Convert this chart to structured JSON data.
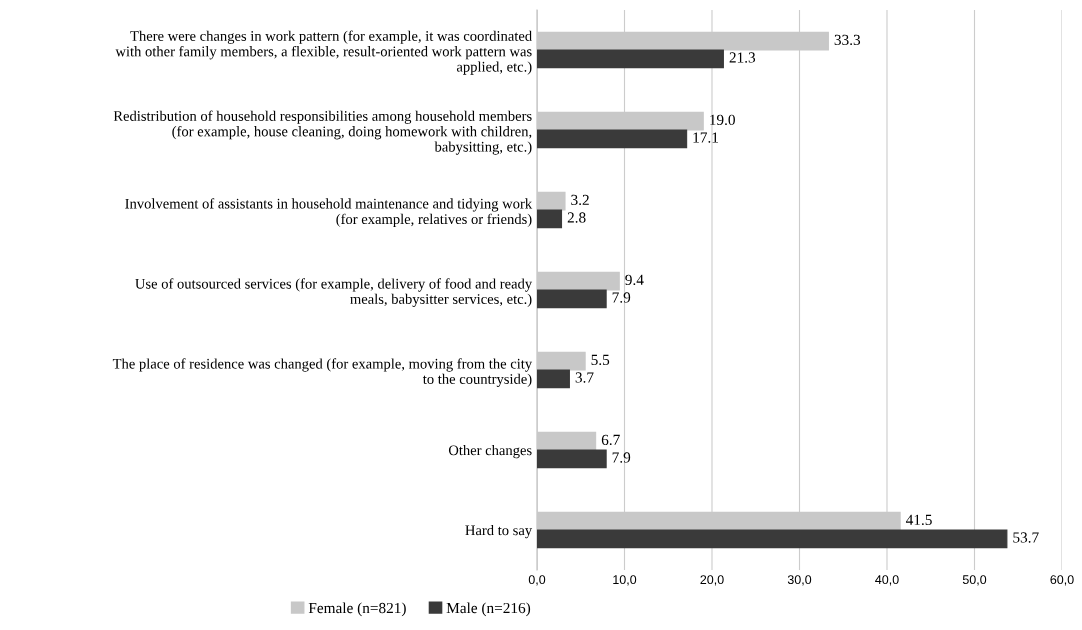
{
  "chart_data": {
    "type": "bar",
    "orientation": "horizontal",
    "categories": [
      "There were changes in work pattern (for example, it was coordinated\nwith other family members, a flexible, result-oriented work pattern was\napplied, etc.)",
      "Redistribution of household responsibilities among household members\n(for example, house cleaning, doing homework with children,\nbabysitting, etc.)",
      "Involvement of assistants in household maintenance and tidying work\n(for example, relatives or friends)",
      "Use of outsourced services (for example, delivery of food and ready\nmeals, babysitter services, etc.)",
      "The place of residence was changed (for example, moving from the city\nto the countryside)",
      "Other changes",
      "Hard to say"
    ],
    "series": [
      {
        "name": "Female (n=821)",
        "color": "#c8c8c8",
        "values": [
          33.3,
          19.0,
          3.2,
          9.4,
          5.5,
          6.7,
          41.5
        ],
        "value_labels": [
          "33.3",
          "19.0",
          "3.2",
          "9.4",
          "5.5",
          "6.7",
          "41.5"
        ]
      },
      {
        "name": "Male (n=216)",
        "color": "#3a3a3a",
        "values": [
          21.3,
          17.1,
          2.8,
          7.9,
          3.7,
          7.9,
          53.7
        ],
        "value_labels": [
          "21.3",
          "17.1",
          "2.8",
          "7.9",
          "3.7",
          "7.9",
          "53.7"
        ]
      }
    ],
    "xlim": [
      0,
      60
    ],
    "xticks": [
      {
        "value": 0,
        "label": "0,0"
      },
      {
        "value": 10,
        "label": "10,0"
      },
      {
        "value": 20,
        "label": "20,0"
      },
      {
        "value": 30,
        "label": "30,0"
      },
      {
        "value": 40,
        "label": "40,0"
      },
      {
        "value": 50,
        "label": "50,0"
      },
      {
        "value": 60,
        "label": "60,0"
      }
    ],
    "grid": "x",
    "legend": "bottom"
  }
}
